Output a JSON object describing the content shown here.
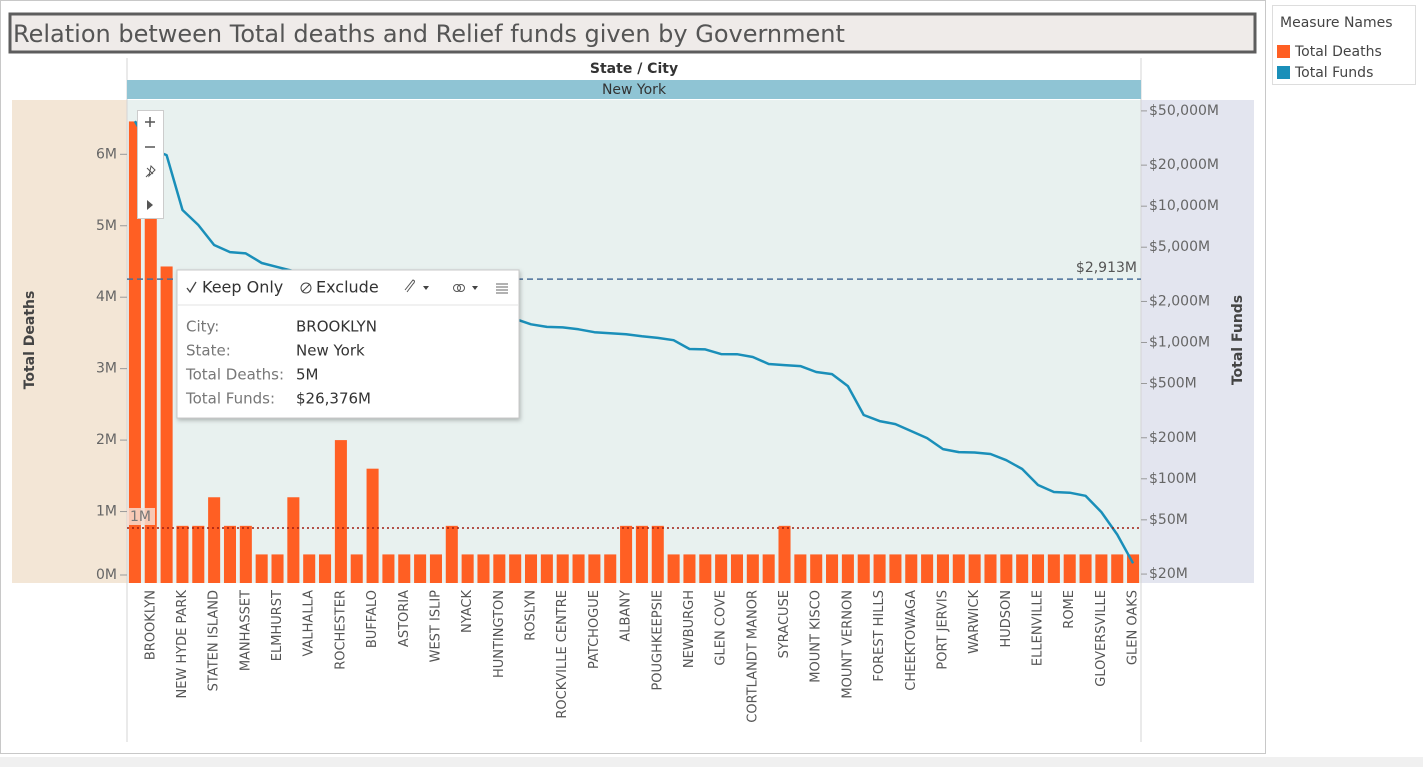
{
  "chart_data": {
    "type": "bar_line",
    "title": "Relation between Total deaths and Relief funds given by Government",
    "column_header": "State / City",
    "pane_header": "New York",
    "y_label": "Total Deaths",
    "y2_label": "Total Funds",
    "legend_title": "Measure Names",
    "legend": "top-right",
    "grid": false,
    "y2log": true,
    "categories": [
      null,
      "BROOKLYN",
      null,
      "NEW HYDE PARK",
      null,
      "STATEN ISLAND",
      null,
      "MANHASSET",
      null,
      "ELMHURST",
      null,
      "VALHALLA",
      null,
      "ROCHESTER",
      null,
      "BUFFALO",
      null,
      "ASTORIA",
      null,
      "WEST ISLIP",
      null,
      "NYACK",
      null,
      "HUNTINGTON",
      null,
      "ROSLYN",
      null,
      "ROCKVILLE CENTRE",
      null,
      "PATCHOGUE",
      null,
      "ALBANY",
      null,
      "POUGHKEEPSIE",
      null,
      "NEWBURGH",
      null,
      "GLEN COVE",
      null,
      "CORTLANDT MANOR",
      null,
      "SYRACUSE",
      null,
      "MOUNT KISCO",
      null,
      "MOUNT VERNON",
      null,
      "FOREST HILLS",
      null,
      "CHEEKTOWAGA",
      null,
      "PORT JERVIS",
      null,
      "WARWICK",
      null,
      "HUDSON",
      null,
      "ELLENVILLE",
      null,
      "ROME",
      null,
      "GLOVERSVILLE",
      null,
      "GLEN OAKS"
    ],
    "series": [
      {
        "name": "Total Deaths",
        "mark": "bar",
        "axis": "y",
        "color": "#ff5f23",
        "values": [
          6.46,
          5.24,
          4.43,
          0.8,
          0.8,
          1.2,
          0.8,
          0.8,
          0.4,
          0.4,
          1.2,
          0.4,
          0.4,
          2.0,
          0.4,
          1.6,
          0.4,
          0.4,
          0.4,
          0.4,
          0.8,
          0.4,
          0.4,
          0.4,
          0.4,
          0.4,
          0.4,
          0.4,
          0.4,
          0.4,
          0.4,
          0.8,
          0.8,
          0.8,
          0.4,
          0.4,
          0.4,
          0.4,
          0.4,
          0.4,
          0.4,
          0.8,
          0.4,
          0.4,
          0.4,
          0.4,
          0.4,
          0.4,
          0.4,
          0.4,
          0.4,
          0.4,
          0.4,
          0.4,
          0.4,
          0.4,
          0.4,
          0.4,
          0.4,
          0.4,
          0.4,
          0.4,
          0.4,
          0.4
        ]
      },
      {
        "name": "Total Funds",
        "mark": "line",
        "axis": "y2",
        "color": "#1a8fb9",
        "values": [
          42100,
          26376,
          23700,
          9380,
          7270,
          5190,
          4600,
          4500,
          3830,
          3570,
          3340,
          3180,
          3020,
          2870,
          2690,
          2550,
          2430,
          2310,
          2150,
          2050,
          1950,
          1850,
          1730,
          1640,
          1490,
          1360,
          1300,
          1290,
          1250,
          1190,
          1170,
          1150,
          1110,
          1080,
          1040,
          895,
          890,
          822,
          820,
          782,
          695,
          683,
          671,
          607,
          586,
          479,
          294,
          265,
          252,
          224,
          199,
          165,
          157,
          156,
          152,
          137,
          118,
          90,
          80,
          79,
          75,
          57,
          39,
          24
        ]
      }
    ],
    "ylim": [
      0,
      6.76
    ],
    "yticks": [
      {
        "value": 0,
        "label": "0M"
      },
      {
        "value": 1,
        "label": "1M"
      },
      {
        "value": 2,
        "label": "2M"
      },
      {
        "value": 3,
        "label": "3M"
      },
      {
        "value": 4,
        "label": "4M"
      },
      {
        "value": 5,
        "label": "5M"
      },
      {
        "value": 6,
        "label": "6M"
      }
    ],
    "y2lim": [
      17.2,
      60100
    ],
    "y2ticks": [
      {
        "value": 20,
        "label": "$20M"
      },
      {
        "value": 50,
        "label": "$50M"
      },
      {
        "value": 100,
        "label": "$100M"
      },
      {
        "value": 200,
        "label": "$200M"
      },
      {
        "value": 500,
        "label": "$500M"
      },
      {
        "value": 1000,
        "label": "$1,000M"
      },
      {
        "value": 2000,
        "label": "$2,000M"
      },
      {
        "value": 5000,
        "label": "$5,000M"
      },
      {
        "value": 10000,
        "label": "$10,000M"
      },
      {
        "value": 20000,
        "label": "$20,000M"
      },
      {
        "value": 50000,
        "label": "$50,000M"
      }
    ],
    "reference_lines": [
      {
        "axis": "y2",
        "value": 2913,
        "label": "$2,913M",
        "color": "#4a6f99"
      },
      {
        "axis": "y",
        "value": 0.77,
        "label": "1M",
        "color": "#a01c10"
      }
    ]
  },
  "tooltip": {
    "actions": [
      "Keep Only",
      "Exclude"
    ],
    "fields": [
      [
        "City:",
        "BROOKLYN"
      ],
      [
        "State:",
        "New York"
      ],
      [
        "Total Deaths:",
        "5M"
      ],
      [
        "Total Funds:",
        "$26,376M"
      ]
    ]
  }
}
